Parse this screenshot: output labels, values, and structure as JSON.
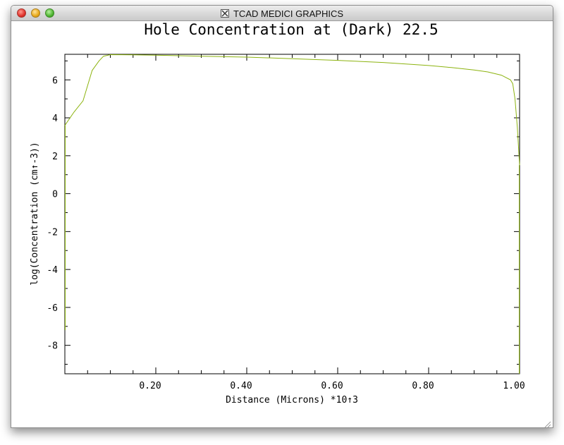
{
  "window": {
    "title": "TCAD MEDICI GRAPHICS",
    "app_icon": "x11-icon"
  },
  "colors": {
    "curve": "#8cb30f",
    "axis": "#000000",
    "background": "#ffffff"
  },
  "chart_data": {
    "type": "line",
    "title": "Hole Concentration at (Dark) 22.5",
    "xlabel": "Distance (Microns) *10↑3",
    "ylabel": "log(Concentration (cm↑-3))",
    "xlim": [
      0,
      1.0
    ],
    "ylim": [
      -9.5,
      7.35
    ],
    "x_ticks": [
      0.2,
      0.4,
      0.6,
      0.8,
      1.0
    ],
    "x_tick_labels": [
      "0.20",
      "0.40",
      "0.60",
      "0.80",
      "1.00"
    ],
    "y_ticks": [
      6,
      4,
      2,
      0,
      -2,
      -4,
      -6,
      -8
    ],
    "y_tick_labels": [
      "6",
      "4",
      "2",
      "0",
      "-2",
      "-4",
      "-6",
      "-8"
    ],
    "grid": false,
    "series": [
      {
        "x": [
          0.0,
          0.02,
          0.04,
          0.06,
          0.075,
          0.085,
          0.1,
          0.15,
          0.2,
          0.3,
          0.4,
          0.5,
          0.6,
          0.7,
          0.8,
          0.85,
          0.9,
          0.93,
          0.96,
          0.98,
          0.985,
          0.99,
          0.995,
          1.0
        ],
        "y": [
          3.6,
          4.3,
          4.9,
          6.5,
          7.0,
          7.25,
          7.33,
          7.32,
          7.3,
          7.25,
          7.2,
          7.12,
          7.03,
          6.92,
          6.76,
          6.65,
          6.52,
          6.42,
          6.25,
          6.0,
          5.8,
          5.0,
          3.5,
          1.5
        ]
      }
    ]
  }
}
